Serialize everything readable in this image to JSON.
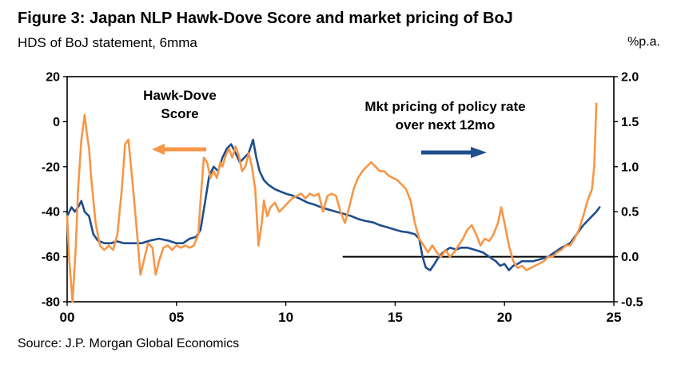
{
  "header": {
    "title": "Figure 3: Japan NLP Hawk-Dove Score and market pricing of BoJ",
    "subtitle_left": "HDS of BoJ statement, 6mma",
    "subtitle_right": "%p.a."
  },
  "annotations": {
    "hds": {
      "lines": [
        "Hawk-Dove",
        "Score"
      ]
    },
    "mkt": {
      "lines": [
        "Mkt pricing of policy rate",
        "over next 12mo"
      ]
    }
  },
  "footer": {
    "source": "Source: J.P. Morgan Global Economics"
  },
  "chart_data": {
    "type": "line",
    "title": "Figure 3: Japan NLP Hawk-Dove Score and market pricing of BoJ",
    "x_range": [
      0,
      25
    ],
    "x_tick_values": [
      0,
      5,
      10,
      15,
      20,
      25
    ],
    "x_ticks": [
      "00",
      "05",
      "10",
      "15",
      "20",
      "25"
    ],
    "left_axis": {
      "label": "HDS of BoJ statement, 6mma",
      "range": [
        -80,
        20
      ],
      "ticks": [
        20,
        0,
        -20,
        -40,
        -60,
        -80
      ]
    },
    "right_axis": {
      "label": "%p.a.",
      "range": [
        -0.5,
        2.0
      ],
      "ticks": [
        2.0,
        1.5,
        1.0,
        0.5,
        0.0,
        -0.5
      ]
    },
    "zero_line": {
      "axis": "right",
      "value": 0.0,
      "x_start": 12.6,
      "x_end": 25
    },
    "legend_position": "in-plot annotations with arrows",
    "grid": false,
    "series": [
      {
        "name": "Mkt pricing of policy rate over next 12mo",
        "axis": "right",
        "color": "#1F4E8C",
        "x": [
          0,
          0.2,
          0.35,
          0.5,
          0.65,
          0.8,
          1.0,
          1.2,
          1.4,
          1.7,
          2.0,
          2.3,
          2.6,
          3.0,
          3.4,
          3.8,
          4.2,
          4.6,
          5.0,
          5.3,
          5.6,
          5.9,
          6.1,
          6.3,
          6.5,
          6.7,
          6.9,
          7.1,
          7.3,
          7.5,
          7.7,
          7.9,
          8.1,
          8.3,
          8.5,
          8.65,
          8.8,
          9.0,
          9.2,
          9.5,
          9.8,
          10.0,
          10.3,
          10.6,
          11.0,
          11.3,
          11.6,
          12.0,
          12.3,
          12.6,
          13.0,
          13.3,
          13.6,
          14.0,
          14.3,
          14.6,
          15.0,
          15.3,
          15.6,
          15.9,
          16.1,
          16.25,
          16.4,
          16.6,
          16.8,
          17.0,
          17.2,
          17.5,
          17.8,
          18.0,
          18.3,
          18.6,
          19.0,
          19.3,
          19.6,
          19.8,
          20.0,
          20.2,
          20.4,
          20.6,
          20.8,
          21.0,
          21.3,
          21.6,
          22.0,
          22.3,
          22.6,
          23.0,
          23.3,
          23.6,
          23.8,
          24.0,
          24.2,
          24.35
        ],
        "y": [
          0.45,
          0.55,
          0.5,
          0.55,
          0.62,
          0.5,
          0.45,
          0.25,
          0.18,
          0.15,
          0.15,
          0.17,
          0.15,
          0.15,
          0.15,
          0.18,
          0.2,
          0.18,
          0.15,
          0.15,
          0.2,
          0.22,
          0.3,
          0.6,
          0.9,
          1.0,
          0.95,
          1.1,
          1.2,
          1.25,
          1.15,
          1.05,
          1.1,
          1.15,
          1.3,
          1.1,
          0.95,
          0.85,
          0.8,
          0.75,
          0.72,
          0.7,
          0.68,
          0.65,
          0.6,
          0.58,
          0.55,
          0.52,
          0.5,
          0.48,
          0.45,
          0.42,
          0.4,
          0.38,
          0.35,
          0.33,
          0.3,
          0.28,
          0.27,
          0.25,
          0.2,
          0.0,
          -0.12,
          -0.15,
          -0.08,
          0.0,
          0.05,
          0.1,
          0.08,
          0.1,
          0.1,
          0.08,
          0.05,
          0.0,
          -0.05,
          -0.1,
          -0.08,
          -0.15,
          -0.1,
          -0.08,
          -0.05,
          -0.05,
          -0.05,
          -0.03,
          0.0,
          0.05,
          0.1,
          0.15,
          0.25,
          0.35,
          0.4,
          0.45,
          0.5,
          0.55
        ]
      },
      {
        "name": "Hawk-Dove Score",
        "axis": "left",
        "color": "#F79646",
        "x": [
          0,
          0.1,
          0.25,
          0.4,
          0.5,
          0.65,
          0.8,
          0.9,
          1.0,
          1.1,
          1.3,
          1.5,
          1.7,
          1.9,
          2.1,
          2.3,
          2.5,
          2.65,
          2.8,
          3.0,
          3.2,
          3.35,
          3.5,
          3.7,
          3.9,
          4.05,
          4.2,
          4.4,
          4.6,
          4.8,
          5.0,
          5.2,
          5.4,
          5.6,
          5.8,
          6.0,
          6.1,
          6.25,
          6.4,
          6.55,
          6.7,
          6.85,
          7.0,
          7.1,
          7.25,
          7.4,
          7.55,
          7.7,
          7.85,
          8.0,
          8.15,
          8.3,
          8.45,
          8.6,
          8.75,
          8.9,
          9.0,
          9.15,
          9.3,
          9.5,
          9.7,
          9.9,
          10.1,
          10.3,
          10.5,
          10.7,
          10.9,
          11.1,
          11.3,
          11.5,
          11.7,
          11.9,
          12.1,
          12.3,
          12.5,
          12.7,
          12.9,
          13.1,
          13.3,
          13.5,
          13.7,
          13.9,
          14.1,
          14.3,
          14.5,
          14.7,
          14.9,
          15.1,
          15.3,
          15.5,
          15.7,
          15.9,
          16.1,
          16.3,
          16.5,
          16.7,
          16.9,
          17.1,
          17.3,
          17.5,
          17.7,
          17.9,
          18.1,
          18.3,
          18.5,
          18.7,
          18.9,
          19.1,
          19.3,
          19.5,
          19.7,
          19.85,
          20.0,
          20.2,
          20.4,
          20.6,
          20.8,
          21.0,
          21.2,
          21.4,
          21.6,
          21.8,
          22.0,
          22.2,
          22.4,
          22.6,
          22.8,
          23.0,
          23.2,
          23.4,
          23.6,
          23.8,
          24.0,
          24.1,
          24.2
        ],
        "y": [
          -42,
          -62,
          -80,
          -55,
          -30,
          -8,
          3,
          -5,
          -12,
          -25,
          -45,
          -55,
          -57,
          -55,
          -57,
          -50,
          -30,
          -10,
          -8,
          -28,
          -50,
          -68,
          -62,
          -54,
          -56,
          -68,
          -62,
          -56,
          -55,
          -57,
          -55,
          -56,
          -55,
          -56,
          -55,
          -50,
          -35,
          -16,
          -18,
          -25,
          -22,
          -25,
          -18,
          -20,
          -15,
          -12,
          -16,
          -11,
          -15,
          -22,
          -20,
          -14,
          -20,
          -30,
          -55,
          -45,
          -35,
          -42,
          -38,
          -36,
          -40,
          -38,
          -36,
          -34,
          -33,
          -32,
          -34,
          -32,
          -33,
          -32,
          -40,
          -33,
          -32,
          -33,
          -40,
          -45,
          -38,
          -30,
          -25,
          -22,
          -20,
          -18,
          -20,
          -22,
          -22,
          -24,
          -25,
          -26,
          -28,
          -30,
          -35,
          -45,
          -52,
          -55,
          -58,
          -55,
          -58,
          -60,
          -57,
          -60,
          -58,
          -55,
          -52,
          -48,
          -46,
          -50,
          -55,
          -52,
          -53,
          -50,
          -45,
          -38,
          -45,
          -55,
          -62,
          -65,
          -64,
          -66,
          -65,
          -64,
          -63,
          -62,
          -60,
          -60,
          -58,
          -57,
          -55,
          -55,
          -52,
          -48,
          -42,
          -35,
          -30,
          -20,
          8
        ]
      }
    ]
  }
}
